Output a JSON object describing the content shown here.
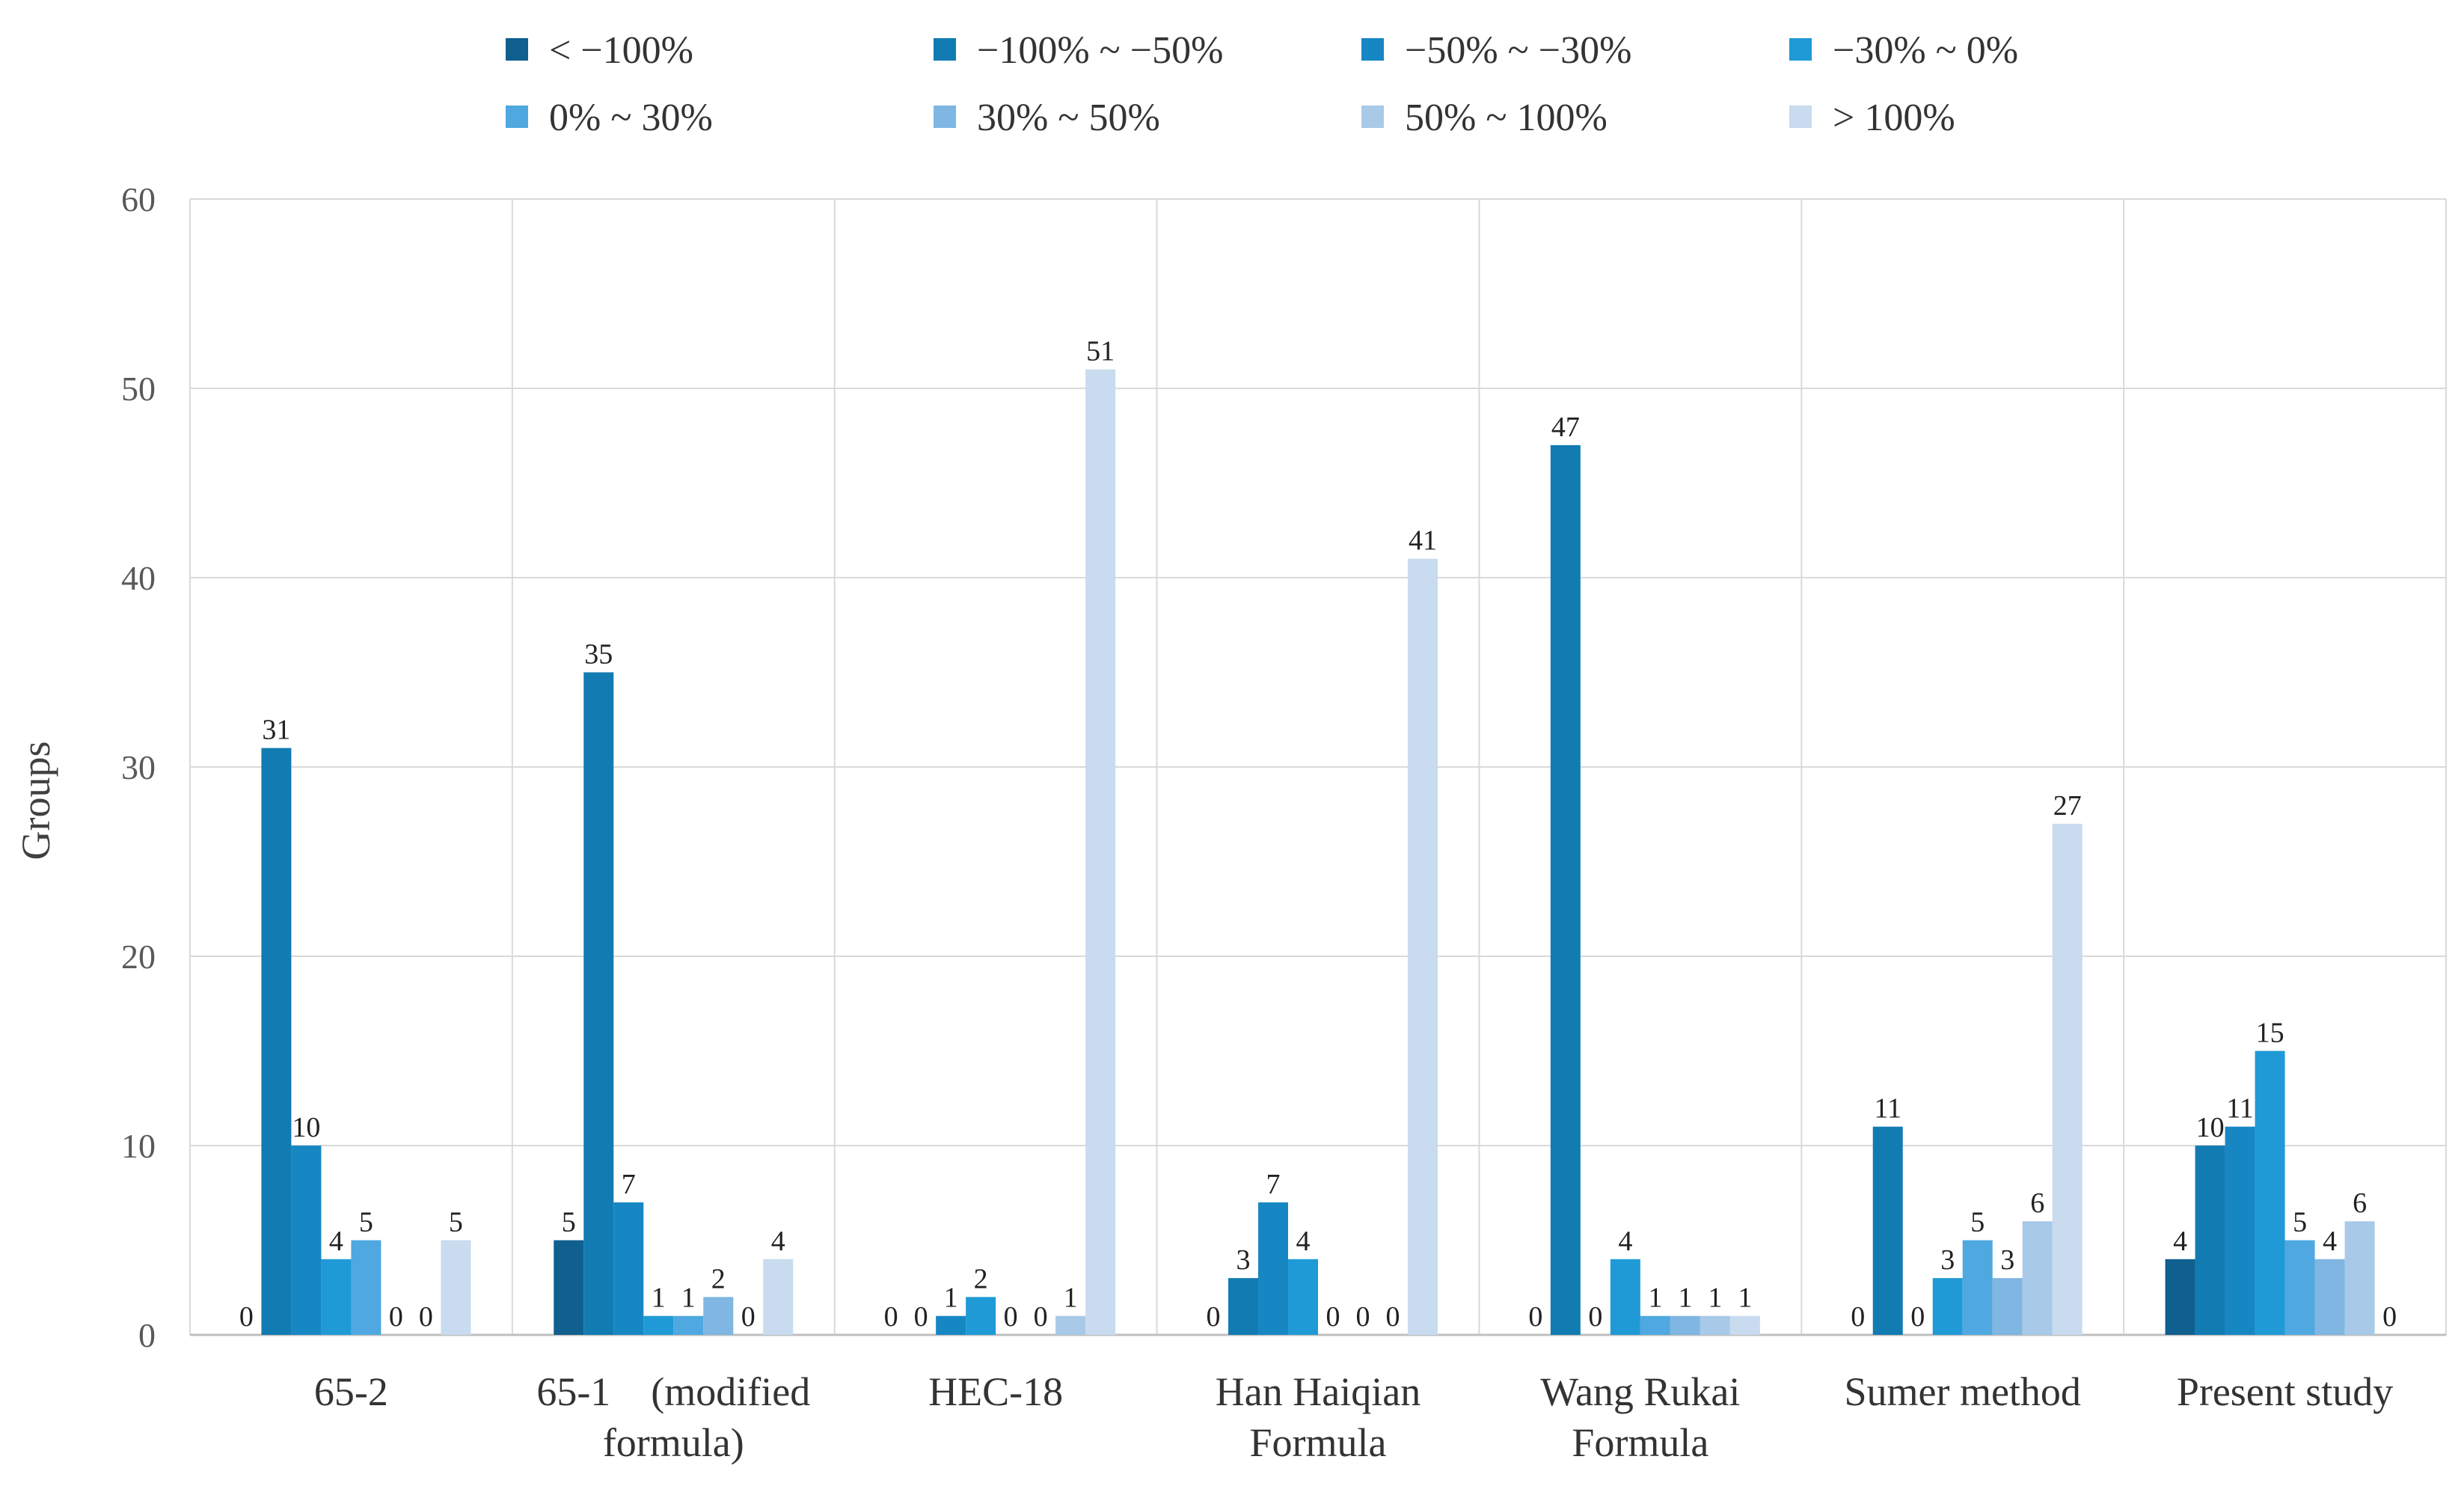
{
  "chart_data": {
    "type": "bar",
    "title": "",
    "xlabel": "",
    "ylabel": "Groups",
    "ylim": [
      0,
      60
    ],
    "yticks": [
      0,
      10,
      20,
      30,
      40,
      50,
      60
    ],
    "grid": true,
    "legend_position": "top",
    "categories": [
      [
        "65-2"
      ],
      [
        "65-1　(modified",
        "formula)"
      ],
      [
        "HEC-18"
      ],
      [
        "Han Haiqian",
        "Formula"
      ],
      [
        "Wang Rukai",
        "Formula"
      ],
      [
        "Sumer method"
      ],
      [
        "Present study"
      ]
    ],
    "series": [
      {
        "name": "< −100%",
        "color": "#0f5f8f",
        "values": [
          0,
          5,
          0,
          0,
          0,
          0,
          4
        ]
      },
      {
        "name": "−100% ~ −50%",
        "color": "#127bb2",
        "values": [
          31,
          35,
          0,
          3,
          47,
          11,
          10
        ]
      },
      {
        "name": "−50% ~ −30%",
        "color": "#1787c4",
        "values": [
          10,
          7,
          1,
          7,
          0,
          0,
          11
        ]
      },
      {
        "name": "−30% ~ 0%",
        "color": "#1f9ad6",
        "values": [
          4,
          1,
          2,
          4,
          4,
          3,
          15
        ]
      },
      {
        "name": "0% ~ 30%",
        "color": "#4fa8df",
        "values": [
          5,
          1,
          0,
          0,
          1,
          5,
          5
        ]
      },
      {
        "name": "30% ~ 50%",
        "color": "#7fb6e2",
        "values": [
          0,
          2,
          0,
          0,
          1,
          3,
          4
        ]
      },
      {
        "name": "50% ~ 100%",
        "color": "#a9c9e8",
        "values": [
          0,
          0,
          1,
          0,
          1,
          6,
          6
        ]
      },
      {
        "name": "> 100%",
        "color": "#c8dbef",
        "values": [
          5,
          4,
          51,
          41,
          1,
          27,
          0
        ]
      }
    ]
  }
}
